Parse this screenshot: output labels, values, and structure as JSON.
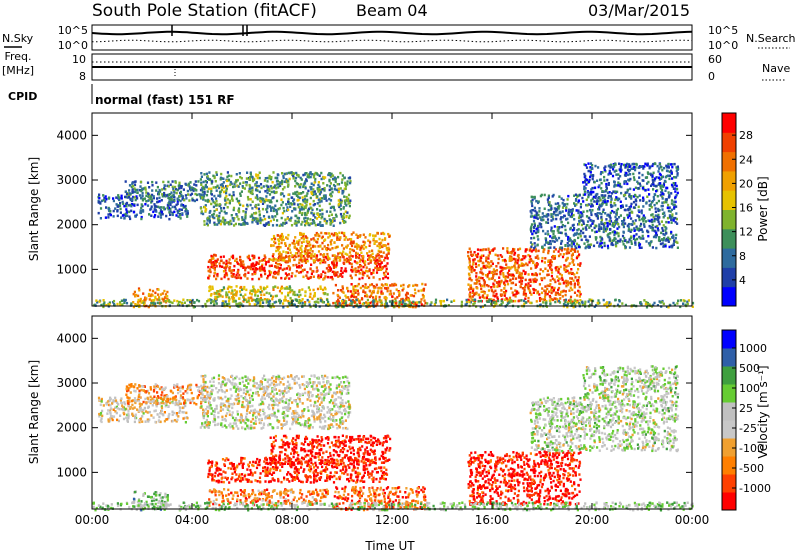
{
  "header": {
    "station": "South Pole Station (fitACF)",
    "beam": "Beam 04",
    "date": "03/Mar/2015"
  },
  "top_panels": {
    "nsky_label": "N.Sky",
    "nsky_ticks": [
      "10^5",
      "10^0"
    ],
    "nsearch_label": "N.Search",
    "nsearch_ticks": [
      "10^5",
      "10^0"
    ],
    "freq_label_1": "Freq.",
    "freq_label_2": "[MHz]",
    "freq_ticks": [
      "10",
      "8"
    ],
    "nave_label": "Nave",
    "nave_ticks": [
      "60",
      "0"
    ],
    "cpid_label": "CPID",
    "cpid_value": "normal (fast) 151 RF"
  },
  "colors": {
    "power_scale": [
      "#0000ff",
      "#1f3fa8",
      "#2e6b9e",
      "#3d8f5a",
      "#7fb32e",
      "#e6c200",
      "#f0a000",
      "#f07000",
      "#f04000",
      "#ff0000"
    ],
    "velocity_scale": [
      "#ff0000",
      "#ff4000",
      "#ff7f00",
      "#f0a030",
      "#c8c8c8",
      "#c0c0c0",
      "#66cc33",
      "#3f9f3f",
      "#2f5fa8",
      "#0000ff"
    ]
  },
  "chart_data": [
    {
      "type": "heatmap",
      "panel": "power",
      "ylabel": "Slant Range [km]",
      "xlabel": "",
      "x_ticks": [
        "00:00",
        "04:00",
        "08:00",
        "12:00",
        "16:00",
        "20:00",
        "00:00"
      ],
      "y_ticks": [
        "1000",
        "2000",
        "3000",
        "4000"
      ],
      "ylim": [
        180,
        4500
      ],
      "xlim": [
        0,
        24
      ],
      "colorbar_label": "Power [dB]",
      "colorbar_ticks": [
        "28",
        "24",
        "20",
        "16",
        "12",
        "8",
        "4"
      ],
      "blobs": [
        {
          "t0": 0.2,
          "t1": 3.8,
          "r0": 2150,
          "r1": 2700,
          "level": 0.2
        },
        {
          "t0": 1.3,
          "t1": 4.6,
          "r0": 2550,
          "r1": 3000,
          "level": 0.3
        },
        {
          "t0": 4.3,
          "t1": 10.3,
          "r0": 2000,
          "r1": 3200,
          "level": 0.35
        },
        {
          "t0": 4.6,
          "t1": 11.8,
          "r0": 800,
          "r1": 1350,
          "level": 0.85
        },
        {
          "t0": 7.1,
          "t1": 11.9,
          "r0": 1200,
          "r1": 1850,
          "level": 0.7
        },
        {
          "t0": 4.6,
          "t1": 9.4,
          "r0": 280,
          "r1": 650,
          "level": 0.55
        },
        {
          "t0": 9.6,
          "t1": 13.3,
          "r0": 180,
          "r1": 700,
          "level": 0.75
        },
        {
          "t0": 1.6,
          "t1": 3.0,
          "r0": 180,
          "r1": 600,
          "level": 0.7
        },
        {
          "t0": 15.0,
          "t1": 19.5,
          "r0": 300,
          "r1": 1500,
          "level": 0.8
        },
        {
          "t0": 17.5,
          "t1": 23.4,
          "r0": 1500,
          "r1": 2700,
          "level": 0.25
        },
        {
          "t0": 19.6,
          "t1": 23.4,
          "r0": 2700,
          "r1": 3400,
          "level": 0.2
        },
        {
          "t0": 0.0,
          "t1": 24.0,
          "r0": 180,
          "r1": 350,
          "level": 0.4
        }
      ]
    },
    {
      "type": "heatmap",
      "panel": "velocity",
      "ylabel": "Slant Range [km]",
      "xlabel": "Time UT",
      "x_ticks": [
        "00:00",
        "04:00",
        "08:00",
        "12:00",
        "16:00",
        "20:00",
        "00:00"
      ],
      "y_ticks": [
        "1000",
        "2000",
        "3000",
        "4000"
      ],
      "ylim": [
        180,
        4500
      ],
      "xlim": [
        0,
        24
      ],
      "colorbar_label": "Velocity [m s⁻¹]",
      "colorbar_ticks": [
        "1000",
        "500",
        "100",
        "25",
        "-25",
        "-100",
        "-500",
        "-1000"
      ],
      "blobs": [
        {
          "t0": 0.2,
          "t1": 3.8,
          "r0": 2150,
          "r1": 2700,
          "level": 0.45
        },
        {
          "t0": 1.3,
          "t1": 4.6,
          "r0": 2550,
          "r1": 3000,
          "level": 0.3
        },
        {
          "t0": 4.3,
          "t1": 10.3,
          "r0": 2000,
          "r1": 3200,
          "level": 0.5
        },
        {
          "t0": 4.6,
          "t1": 11.8,
          "r0": 800,
          "r1": 1350,
          "level": 0.1
        },
        {
          "t0": 7.1,
          "t1": 11.9,
          "r0": 1200,
          "r1": 1850,
          "level": 0.05
        },
        {
          "t0": 4.6,
          "t1": 9.4,
          "r0": 280,
          "r1": 650,
          "level": 0.25
        },
        {
          "t0": 9.6,
          "t1": 13.3,
          "r0": 180,
          "r1": 700,
          "level": 0.2
        },
        {
          "t0": 1.6,
          "t1": 3.0,
          "r0": 180,
          "r1": 600,
          "level": 0.65
        },
        {
          "t0": 15.0,
          "t1": 19.5,
          "r0": 300,
          "r1": 1500,
          "level": 0.05
        },
        {
          "t0": 17.5,
          "t1": 23.4,
          "r0": 1500,
          "r1": 2700,
          "level": 0.55
        },
        {
          "t0": 19.6,
          "t1": 23.4,
          "r0": 2700,
          "r1": 3400,
          "level": 0.55
        },
        {
          "t0": 0.0,
          "t1": 24.0,
          "r0": 180,
          "r1": 350,
          "level": 0.6
        }
      ]
    }
  ]
}
